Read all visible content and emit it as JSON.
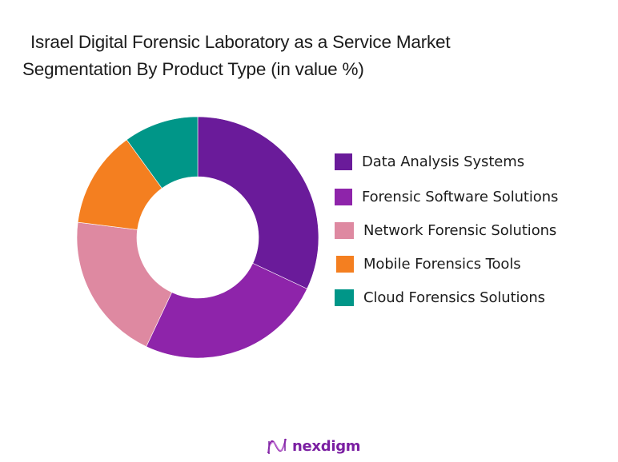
{
  "title": {
    "line1": "Israel Digital Forensic Laboratory as a Service Market",
    "line2": "Segmentation By Product Type (in value %)"
  },
  "brand": {
    "name": "nexdigm",
    "icon": "nexdigm-logo-icon",
    "color": "#7B1FA2"
  },
  "chart_data": {
    "type": "pie",
    "variant": "donut",
    "title": "Israel Digital Forensic Laboratory as a Service Market Segmentation By Product Type (in value %)",
    "categories": [
      "Data Analysis Systems",
      "Forensic Software Solutions",
      "Network Forensic Solutions",
      "Mobile Forensics Tools",
      "Cloud Forensics Solutions"
    ],
    "values": [
      32,
      25,
      20,
      13,
      10
    ],
    "colors": [
      "#6A1B9A",
      "#8E24AA",
      "#DE89A1",
      "#F47F20",
      "#009688"
    ],
    "legend_position": "right",
    "start_angle": "12 o'clock",
    "direction": "clockwise",
    "data_labels": false
  },
  "legend": {
    "items": [
      {
        "label": "Data Analysis Systems",
        "color": "#6A1B9A"
      },
      {
        "label": "Forensic Software Solutions",
        "color": "#8E24AA"
      },
      {
        "label": "Network Forensic Solutions",
        "color": "#DE89A1"
      },
      {
        "label": "Mobile Forensics Tools",
        "color": "#F47F20"
      },
      {
        "label": "Cloud Forensics Solutions",
        "color": "#009688"
      }
    ]
  }
}
